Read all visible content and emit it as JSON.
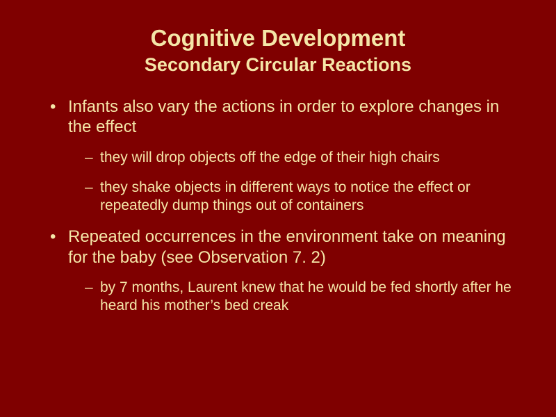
{
  "colors": {
    "background": "#7f0000",
    "text": "#f5e6a8"
  },
  "typography": {
    "title_fontsize": 33,
    "subtitle_fontsize": 27,
    "bullet_fontsize": 24,
    "subbullet_fontsize": 21,
    "font_family": "Arial",
    "font_weight_headings": "bold"
  },
  "title": "Cognitive Development",
  "subtitle": "Secondary Circular Reactions",
  "bullets": [
    {
      "text": "Infants also vary the actions in order to explore changes in the effect",
      "sub": [
        "they will drop objects off the edge of their high chairs",
        "they shake objects in different ways to notice the effect or repeatedly dump things out of containers"
      ]
    },
    {
      "text": "Repeated occurrences in the environment take on meaning for the baby (see Observation 7. 2)",
      "sub": [
        "by 7 months, Laurent knew that he would be fed shortly after he heard his mother’s bed creak"
      ]
    }
  ]
}
